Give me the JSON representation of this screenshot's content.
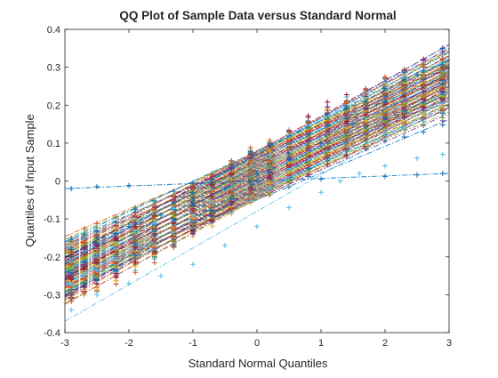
{
  "chart_data": {
    "type": "scatter",
    "title": "QQ Plot of Sample Data versus Standard Normal",
    "xlabel": "Standard Normal Quantiles",
    "ylabel": "Quantiles of Input Sample",
    "xlim": [
      -3,
      3
    ],
    "ylim": [
      -0.4,
      0.4
    ],
    "xticks": [
      "-3",
      "-2",
      "-1",
      "0",
      "1",
      "2",
      "3"
    ],
    "yticks": [
      "-0.4",
      "-0.3",
      "-0.2",
      "-0.1",
      "0",
      "0.1",
      "0.2",
      "0.3",
      "0.4"
    ],
    "grid": false,
    "legend": "none",
    "marker": "+",
    "reference_line_style": "dash-dot",
    "series_count": 100,
    "series_colors": [
      "#0072BD",
      "#D95319",
      "#EDB120",
      "#7E2F8E",
      "#77AC30",
      "#4DBEEE",
      "#A2142F"
    ],
    "series_template": {
      "x": [
        -2.9,
        -2.7,
        -2.5,
        -2.2,
        -1.9,
        -1.6,
        -1.3,
        -1.0,
        -0.7,
        -0.4,
        -0.1,
        0.2,
        0.5,
        0.8,
        1.1,
        1.4,
        1.7,
        2.0,
        2.3,
        2.6,
        2.9
      ],
      "y_offset_from_mean": [
        -0.25,
        -0.23,
        -0.22,
        -0.2,
        -0.17,
        -0.15,
        -0.12,
        -0.09,
        -0.06,
        -0.03,
        0.0,
        0.02,
        0.05,
        0.08,
        0.11,
        0.13,
        0.15,
        0.18,
        0.2,
        0.22,
        0.24
      ]
    },
    "series_highlight": [
      {
        "label": "lowest light-blue series",
        "color": "#4DBEEE",
        "x": [
          -2.9,
          -2.5,
          -2.0,
          -1.5,
          -1.0,
          -0.5,
          0.0,
          0.5,
          1.0,
          1.3,
          1.6,
          2.0,
          2.5,
          2.9
        ],
        "y": [
          -0.34,
          -0.3,
          -0.27,
          -0.25,
          -0.22,
          -0.17,
          -0.12,
          -0.07,
          -0.03,
          0.0,
          0.02,
          0.04,
          0.06,
          0.07
        ],
        "ref_y_at_xlim": [
          -0.37,
          0.21
        ]
      },
      {
        "label": "flat teal series",
        "color": "#0072BD",
        "x": [
          -2.9,
          -2.5,
          -2.0,
          -1.0,
          0.0,
          1.0,
          2.0,
          2.5,
          2.9
        ],
        "y": [
          -0.02,
          -0.015,
          -0.012,
          -0.005,
          0.0,
          0.005,
          0.012,
          0.016,
          0.02
        ],
        "ref_y_at_xlim": [
          -0.02,
          0.02
        ]
      },
      {
        "label": "top teal series",
        "color": "#0072BD",
        "x": [
          -2.9,
          -2.5,
          -2.0,
          -1.5,
          -1.0,
          -0.5,
          0.0,
          0.5,
          1.0,
          1.5,
          2.0,
          2.5,
          2.9
        ],
        "y": [
          -0.18,
          -0.15,
          -0.12,
          -0.09,
          -0.05,
          -0.02,
          0.02,
          0.06,
          0.1,
          0.15,
          0.21,
          0.28,
          0.35
        ],
        "ref_y_at_xlim": [
          -0.22,
          0.36
        ]
      }
    ]
  }
}
